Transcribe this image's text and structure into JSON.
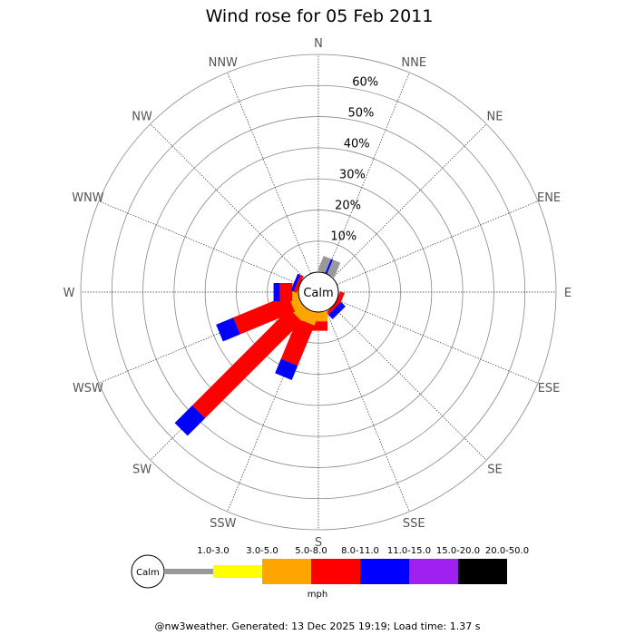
{
  "chart_data": {
    "type": "wind-rose",
    "title": "Wind rose for 05 Feb 2011",
    "directions": [
      "N",
      "NNE",
      "NE",
      "ENE",
      "E",
      "ESE",
      "SE",
      "SSE",
      "S",
      "SSW",
      "SW",
      "WSW",
      "W",
      "WNW",
      "NW",
      "NNW"
    ],
    "radial_ticks": [
      "10%",
      "20%",
      "30%",
      "40%",
      "50%",
      "60%"
    ],
    "radial_max": 70,
    "center_label": "Calm",
    "speed_bins": [
      {
        "label": "1.0-3.0",
        "color": "#999999"
      },
      {
        "label": "3.0-5.0",
        "color": "#ffff00"
      },
      {
        "label": "5.0-8.0",
        "color": "#ffa500"
      },
      {
        "label": "8.0-11.0",
        "color": "#ff0000"
      },
      {
        "label": "11.0-15.0",
        "color": "#0000ff"
      },
      {
        "label": "15.0-20.0",
        "color": "#a020f0"
      },
      {
        "label": "20.0-50.0",
        "color": "#000000"
      }
    ],
    "units": "mph",
    "series": [
      {
        "direction": "NNE",
        "segments": [
          [
            4,
            0
          ],
          [
            0,
            5
          ]
        ]
      },
      {
        "direction": "ESE",
        "segments": [
          [
            3,
            0.5
          ],
          [
            3,
            1
          ]
        ]
      },
      {
        "direction": "SE",
        "segments": [
          [
            3,
            1
          ],
          [
            4,
            1.5
          ],
          [
            4,
            0.5
          ]
        ]
      },
      {
        "direction": "S",
        "segments": [
          [
            2,
            3
          ],
          [
            3,
            3
          ]
        ]
      },
      {
        "direction": "SSW",
        "segments": [
          [
            2,
            4
          ],
          [
            3,
            14
          ],
          [
            4,
            5
          ]
        ]
      },
      {
        "direction": "SW",
        "segments": [
          [
            2,
            4
          ],
          [
            3,
            44
          ],
          [
            4,
            8
          ]
        ]
      },
      {
        "direction": "WSW",
        "segments": [
          [
            2,
            3
          ],
          [
            3,
            19
          ],
          [
            4,
            6
          ]
        ]
      },
      {
        "direction": "W",
        "segments": [
          [
            2,
            2
          ],
          [
            3,
            4
          ],
          [
            4,
            2
          ]
        ]
      },
      {
        "direction": "WNW",
        "segments": [
          [
            3,
            1
          ],
          [
            4,
            1
          ]
        ]
      }
    ]
  },
  "footer": "@nw3weather. Generated: 13 Dec 2025 19:19; Load time: 1.37 s"
}
